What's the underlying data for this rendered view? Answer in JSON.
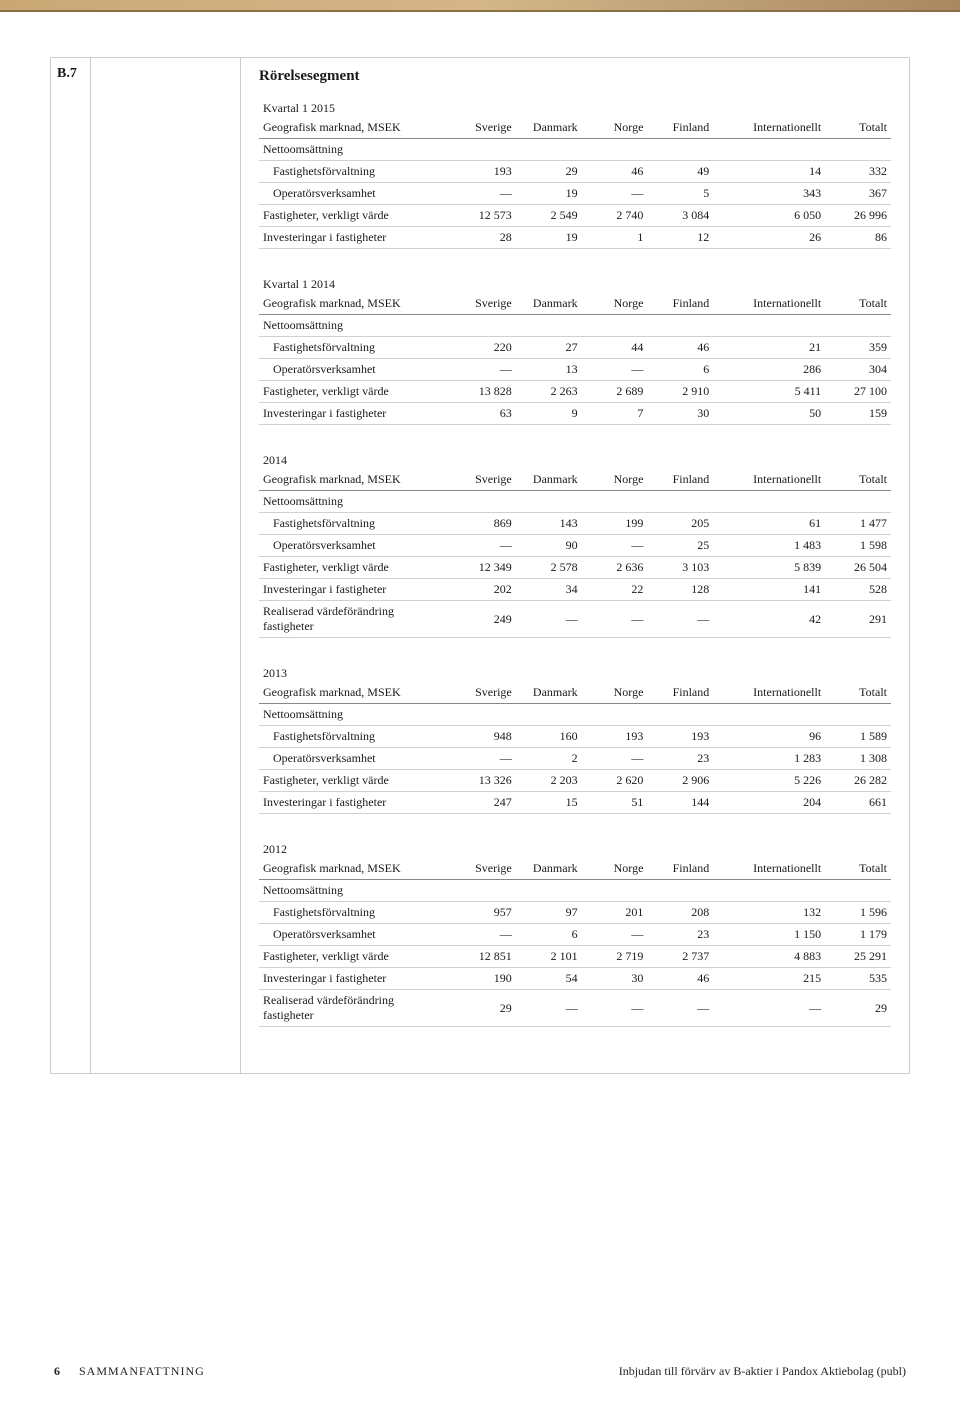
{
  "topbar": {
    "gradient_from": "#c9a875",
    "gradient_mid": "#d4b68a",
    "gradient_to": "#a8885f"
  },
  "section": {
    "id": "B.7",
    "title": "Rörelsesegment"
  },
  "columns": [
    "Sverige",
    "Danmark",
    "Norge",
    "Finland",
    "Internationellt",
    "Totalt"
  ],
  "header_label": "Geografisk marknad, MSEK",
  "subhead_net": "Nettoomsättning",
  "row_labels": {
    "fast_forv": "Fastighetsförvaltning",
    "op_verk": "Operatörsverksamhet",
    "fast_varde": "Fastigheter, verkligt värde",
    "invest": "Investeringar i fastigheter",
    "real_varde": "Realiserad värdeförändring fastigheter"
  },
  "tables": [
    {
      "period": "Kvartal 1 2015",
      "rows": [
        {
          "k": "fast_forv",
          "indent": true,
          "v": [
            "193",
            "29",
            "46",
            "49",
            "14",
            "332"
          ]
        },
        {
          "k": "op_verk",
          "indent": true,
          "v": [
            "—",
            "19",
            "—",
            "5",
            "343",
            "367"
          ]
        },
        {
          "k": "fast_varde",
          "indent": false,
          "v": [
            "12 573",
            "2 549",
            "2 740",
            "3 084",
            "6 050",
            "26 996"
          ]
        },
        {
          "k": "invest",
          "indent": false,
          "v": [
            "28",
            "19",
            "1",
            "12",
            "26",
            "86"
          ]
        }
      ]
    },
    {
      "period": "Kvartal 1 2014",
      "rows": [
        {
          "k": "fast_forv",
          "indent": true,
          "v": [
            "220",
            "27",
            "44",
            "46",
            "21",
            "359"
          ]
        },
        {
          "k": "op_verk",
          "indent": true,
          "v": [
            "—",
            "13",
            "—",
            "6",
            "286",
            "304"
          ]
        },
        {
          "k": "fast_varde",
          "indent": false,
          "v": [
            "13 828",
            "2 263",
            "2 689",
            "2 910",
            "5 411",
            "27 100"
          ]
        },
        {
          "k": "invest",
          "indent": false,
          "v": [
            "63",
            "9",
            "7",
            "30",
            "50",
            "159"
          ]
        }
      ]
    },
    {
      "period": "2014",
      "rows": [
        {
          "k": "fast_forv",
          "indent": true,
          "v": [
            "869",
            "143",
            "199",
            "205",
            "61",
            "1 477"
          ]
        },
        {
          "k": "op_verk",
          "indent": true,
          "v": [
            "—",
            "90",
            "—",
            "25",
            "1 483",
            "1 598"
          ]
        },
        {
          "k": "fast_varde",
          "indent": false,
          "v": [
            "12 349",
            "2 578",
            "2 636",
            "3 103",
            "5 839",
            "26 504"
          ]
        },
        {
          "k": "invest",
          "indent": false,
          "v": [
            "202",
            "34",
            "22",
            "128",
            "141",
            "528"
          ]
        },
        {
          "k": "real_varde",
          "indent": false,
          "v": [
            "249",
            "—",
            "—",
            "—",
            "42",
            "291"
          ]
        }
      ]
    },
    {
      "period": "2013",
      "rows": [
        {
          "k": "fast_forv",
          "indent": true,
          "v": [
            "948",
            "160",
            "193",
            "193",
            "96",
            "1 589"
          ]
        },
        {
          "k": "op_verk",
          "indent": true,
          "v": [
            "—",
            "2",
            "—",
            "23",
            "1 283",
            "1 308"
          ]
        },
        {
          "k": "fast_varde",
          "indent": false,
          "v": [
            "13 326",
            "2 203",
            "2 620",
            "2 906",
            "5 226",
            "26 282"
          ]
        },
        {
          "k": "invest",
          "indent": false,
          "v": [
            "247",
            "15",
            "51",
            "144",
            "204",
            "661"
          ]
        }
      ]
    },
    {
      "period": "2012",
      "rows": [
        {
          "k": "fast_forv",
          "indent": true,
          "v": [
            "957",
            "97",
            "201",
            "208",
            "132",
            "1 596"
          ]
        },
        {
          "k": "op_verk",
          "indent": true,
          "v": [
            "—",
            "6",
            "—",
            "23",
            "1 150",
            "1 179"
          ]
        },
        {
          "k": "fast_varde",
          "indent": false,
          "v": [
            "12 851",
            "2 101",
            "2 719",
            "2 737",
            "4 883",
            "25 291"
          ]
        },
        {
          "k": "invest",
          "indent": false,
          "v": [
            "190",
            "54",
            "30",
            "46",
            "215",
            "535"
          ]
        },
        {
          "k": "real_varde",
          "indent": false,
          "v": [
            "29",
            "—",
            "—",
            "—",
            "—",
            "29"
          ]
        }
      ]
    }
  ],
  "footer": {
    "page": "6",
    "left": "SAMMANFATTNING",
    "right": "Inbjudan till förvärv av B-aktier i Pandox Aktiebolag (publ)"
  }
}
